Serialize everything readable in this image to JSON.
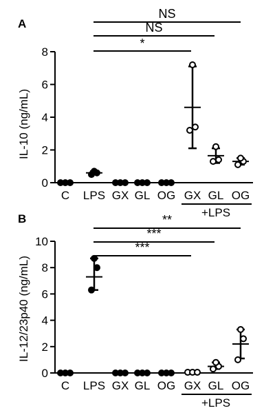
{
  "chart_data": [
    {
      "type": "scatter",
      "panel": "A",
      "ylabel": "IL-10 (ng/mL)",
      "ylim": [
        0,
        8
      ],
      "yticks": [
        0,
        2,
        4,
        6,
        8
      ],
      "categories": [
        "C",
        "LPS",
        "GX",
        "GL",
        "OG",
        "GX",
        "GL",
        "OG"
      ],
      "group_label": "+LPS",
      "group_categories": [
        5,
        7
      ],
      "points": [
        [
          0,
          0,
          0
        ],
        [
          0.5,
          0.6,
          0.7
        ],
        [
          0,
          0,
          0
        ],
        [
          0,
          0,
          0
        ],
        [
          0,
          0,
          0
        ],
        [
          3.2,
          3.4,
          7.2
        ],
        [
          1.3,
          1.4,
          2.2
        ],
        [
          1.1,
          1.3,
          1.5
        ]
      ],
      "mean": [
        null,
        0.6,
        null,
        null,
        null,
        4.6,
        1.65,
        1.3
      ],
      "error_low": [
        null,
        0.5,
        null,
        null,
        null,
        2.1,
        1.2,
        1.1
      ],
      "error_high": [
        null,
        0.7,
        null,
        null,
        null,
        7.1,
        2.1,
        1.5
      ],
      "comparisons": [
        {
          "from": 1,
          "to": 7,
          "label": "NS"
        },
        {
          "from": 1,
          "to": 6,
          "label": "NS"
        },
        {
          "from": 1,
          "to": 5,
          "label": "*"
        }
      ]
    },
    {
      "type": "scatter",
      "panel": "B",
      "ylabel": "IL-12/23p40 (ng/mL)",
      "ylim": [
        0,
        10
      ],
      "yticks": [
        0,
        2,
        4,
        6,
        8,
        10
      ],
      "categories": [
        "C",
        "LPS",
        "GX",
        "GL",
        "OG",
        "GX",
        "GL",
        "OG"
      ],
      "group_label": "+LPS",
      "group_categories": [
        5,
        7
      ],
      "points": [
        [
          0,
          0,
          0
        ],
        [
          6.3,
          8.0,
          8.7
        ],
        [
          0,
          0,
          0
        ],
        [
          0,
          0,
          0
        ],
        [
          0,
          0,
          0
        ],
        [
          0.05,
          0.05,
          0.05
        ],
        [
          0.3,
          0.5,
          0.8
        ],
        [
          1.0,
          2.6,
          3.3
        ]
      ],
      "mean": [
        null,
        7.3,
        null,
        null,
        null,
        null,
        0.5,
        2.2
      ],
      "error_low": [
        null,
        6.3,
        null,
        null,
        null,
        null,
        0.3,
        1.1
      ],
      "error_high": [
        null,
        8.7,
        null,
        null,
        null,
        null,
        0.8,
        3.3
      ],
      "comparisons": [
        {
          "from": 1,
          "to": 7,
          "label": "**"
        },
        {
          "from": 1,
          "to": 6,
          "label": "***"
        },
        {
          "from": 1,
          "to": 5,
          "label": "***"
        }
      ]
    }
  ]
}
